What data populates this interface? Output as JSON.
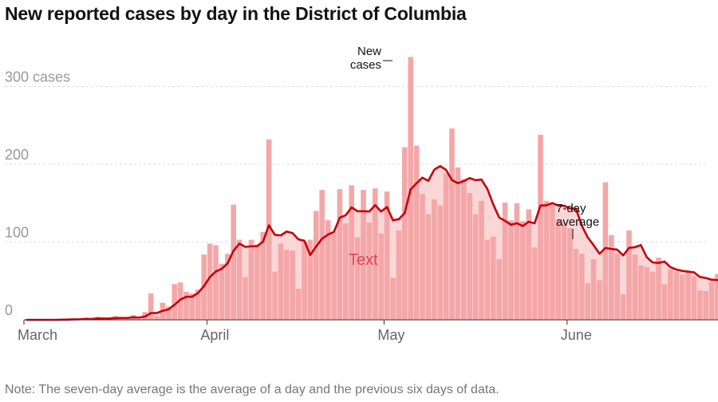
{
  "title": "New reported cases by day in the District of Columbia",
  "note": "Note: The seven-day average is the average of a day and the previous six days of data.",
  "colors": {
    "bar": "#f4a7a8",
    "bar_fill_area": "#fbd6d6",
    "line": "#c6000d",
    "grid": "#dddddd",
    "text_label": "#e0474c"
  },
  "chart_data": {
    "type": "bar",
    "title": "New reported cases by day in the District of Columbia",
    "xlabel": "",
    "ylabel": "cases",
    "ylim": [
      0,
      300
    ],
    "grid": true,
    "y_ticks": [
      {
        "value": 0,
        "label": "0"
      },
      {
        "value": 100,
        "label": "100"
      },
      {
        "value": 200,
        "label": "200"
      },
      {
        "value": 300,
        "label": "300 cases"
      }
    ],
    "x_ticks": [
      {
        "day_index": 0,
        "label": "March"
      },
      {
        "day_index": 31,
        "label": "April"
      },
      {
        "day_index": 61,
        "label": "May"
      },
      {
        "day_index": 92,
        "label": "June"
      }
    ],
    "start_date": "March 1",
    "series": [
      {
        "name": "New cases",
        "type": "bar",
        "values": [
          0,
          0,
          0,
          0,
          0,
          0,
          1,
          1,
          2,
          1,
          3,
          0,
          4,
          1,
          2,
          5,
          2,
          3,
          6,
          1,
          10,
          34,
          5,
          22,
          17,
          46,
          48,
          36,
          34,
          39,
          84,
          98,
          96,
          72,
          85,
          148,
          103,
          55,
          103,
          97,
          113,
          232,
          62,
          98,
          90,
          89,
          40,
          101,
          103,
          140,
          167,
          128,
          112,
          168,
          124,
          173,
          106,
          167,
          125,
          169,
          111,
          165,
          54,
          115,
          222,
          338,
          224,
          162,
          136,
          155,
          147,
          188,
          246,
          196,
          181,
          163,
          136,
          153,
          103,
          107,
          78,
          151,
          128,
          150,
          127,
          142,
          93,
          238,
          153,
          148,
          128,
          125,
          118,
          91,
          85,
          47,
          78,
          51,
          177,
          109,
          85,
          33,
          115,
          84,
          70,
          68,
          62,
          80,
          46,
          65,
          62,
          58,
          61,
          56,
          38,
          37,
          49,
          59,
          54,
          47,
          38
        ]
      },
      {
        "name": "7-day average",
        "type": "line",
        "computed": "average of a day and the previous six days"
      }
    ],
    "annotations": [
      {
        "label": "New cases",
        "target_day_index": 61
      },
      {
        "label": "7-day average",
        "target_day_index": 89
      },
      {
        "label": "Text",
        "note": "stray placeholder label in chart body"
      }
    ]
  },
  "annotations": {
    "new_cases_line1": "New",
    "new_cases_line2": "cases",
    "avg_line1": "7-day",
    "avg_line2": "average",
    "text_label": "Text"
  }
}
